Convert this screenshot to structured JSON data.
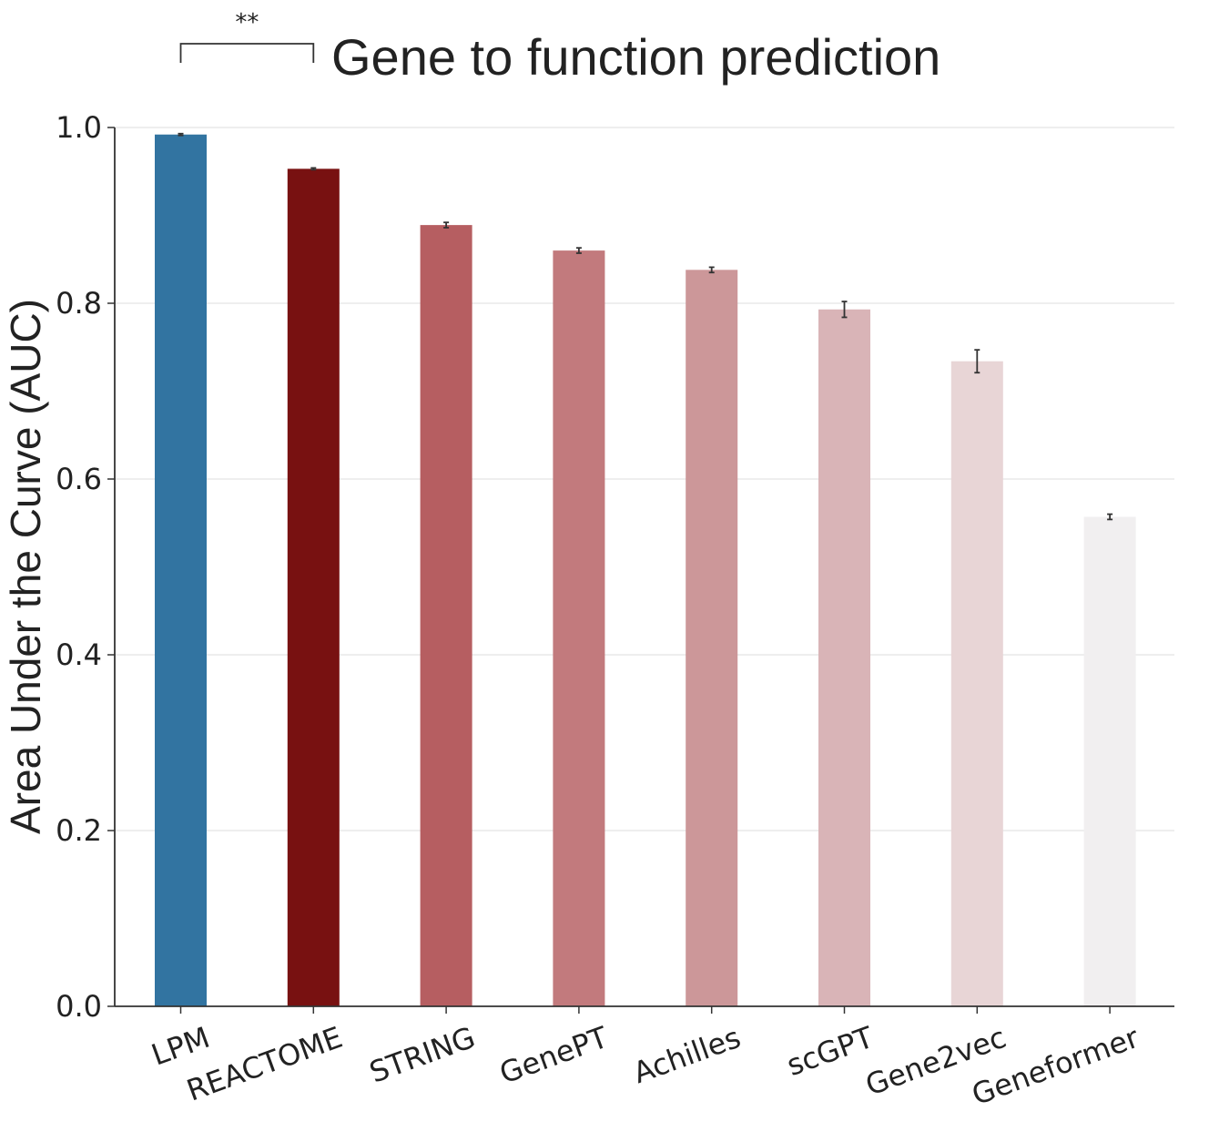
{
  "chart_data": {
    "type": "bar",
    "title": "Gene to function prediction",
    "ylabel": "Area Under the Curve (AUC)",
    "xlabel": "",
    "ylim": [
      0,
      1.0
    ],
    "yticks": [
      "0.0",
      "0.2",
      "0.4",
      "0.6",
      "0.8",
      "1.0"
    ],
    "ytick_values": [
      0.0,
      0.2,
      0.4,
      0.6,
      0.8,
      1.0
    ],
    "grid": "horizontal",
    "categories": [
      "LPM",
      "REACTOME",
      "STRING",
      "GenePT",
      "Achilles",
      "scGPT",
      "Gene2vec",
      "Geneformer"
    ],
    "values": [
      0.992,
      0.953,
      0.889,
      0.86,
      0.838,
      0.793,
      0.734,
      0.557
    ],
    "errors": [
      0.001,
      0.001,
      0.003,
      0.003,
      0.003,
      0.009,
      0.013,
      0.003
    ],
    "colors": [
      "#3274a1",
      "#781111",
      "#b65e61",
      "#c27a7d",
      "#cc9799",
      "#d9b4b7",
      "#e8d5d6",
      "#f1eff0"
    ],
    "significance": {
      "between": [
        "LPM",
        "REACTOME"
      ],
      "label": "**"
    }
  }
}
